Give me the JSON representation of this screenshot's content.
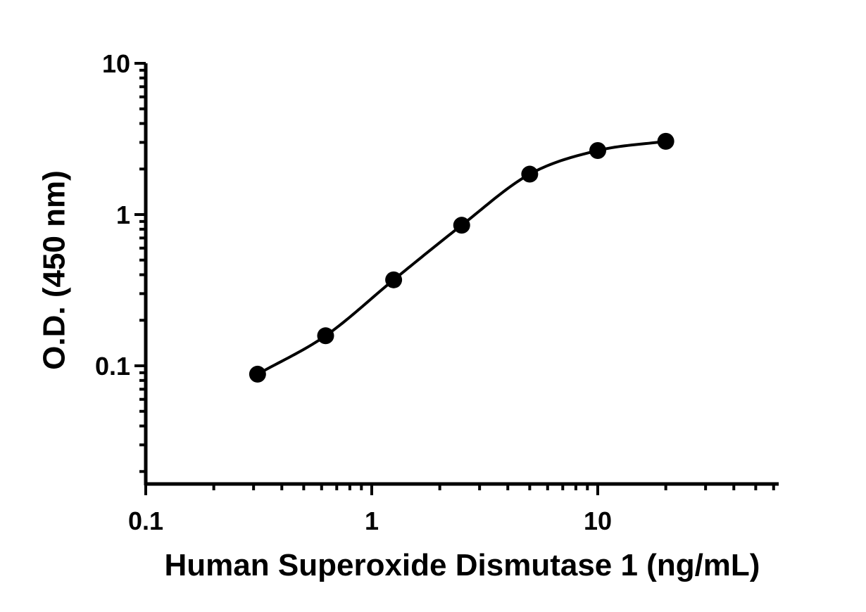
{
  "chart_data": {
    "type": "scatter",
    "title": "",
    "xlabel": "Human Superoxide Dismutase 1 (ng/mL)",
    "ylabel": "O.D. (450 nm)",
    "xscale": "log",
    "yscale": "log",
    "xlim": [
      0.1,
      65
    ],
    "ylim": [
      0.018,
      10
    ],
    "x_ticks": [
      0.1,
      1,
      10
    ],
    "x_tick_labels": [
      "0.1",
      "1",
      "10"
    ],
    "y_ticks": [
      0.1,
      1,
      10
    ],
    "y_tick_labels": [
      "0.1",
      "1",
      "10"
    ],
    "grid": false,
    "legend": "none",
    "series": [
      {
        "x": [
          0.3125,
          0.625,
          1.25,
          2.5,
          5,
          10,
          20
        ],
        "y": [
          0.088,
          0.158,
          0.37,
          0.85,
          1.85,
          2.65,
          3.05
        ],
        "marker": "circle",
        "fit_line": "sigmoidal curve through points",
        "color": "#000000"
      }
    ]
  }
}
